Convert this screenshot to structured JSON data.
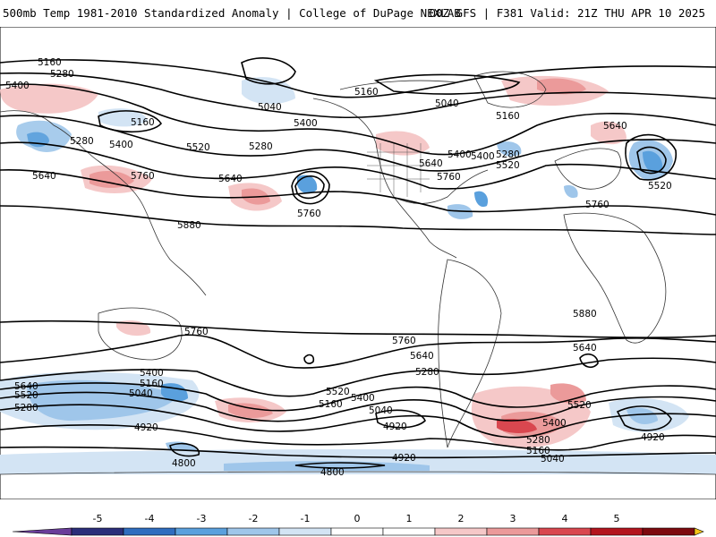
{
  "header": {
    "title": "500mb Temp 1981-2010 Standardized Anomaly | College of DuPage NEXLAB",
    "run_info": "00Z GFS | F381 Valid: 21Z THU APR 10 2025"
  },
  "contour_labels": [
    "5160",
    "5280",
    "5400",
    "5160",
    "5040",
    "5160",
    "5040",
    "5160",
    "5400",
    "5280",
    "5400",
    "5280",
    "5640",
    "5760",
    "5520",
    "5640",
    "5400",
    "5640",
    "5520",
    "5280",
    "5400",
    "5760",
    "5640",
    "5520",
    "5880",
    "5760",
    "5760",
    "5880",
    "5760",
    "5760",
    "5640",
    "5640",
    "5280",
    "5400",
    "5160",
    "5040",
    "5640",
    "5520",
    "5280",
    "5520",
    "5400",
    "5160",
    "5040",
    "4920",
    "4920",
    "4800",
    "4920",
    "4800",
    "5400",
    "5520",
    "5280",
    "5160",
    "5040",
    "4920"
  ],
  "colorbar": {
    "tick_labels": [
      "-5",
      "-4",
      "-3",
      "-2",
      "-1",
      "0",
      "1",
      "2",
      "3",
      "4",
      "5"
    ],
    "colors": [
      "#2b2e7a",
      "#2f6dbf",
      "#5aa0dd",
      "#9fc6ea",
      "#d3e4f4",
      "#ffffff",
      "#ffffff",
      "#f5c8c8",
      "#eb9a9a",
      "#d9474f",
      "#b3151e",
      "#7d0a0f"
    ],
    "low_arrow_color": "#6a3d9a",
    "high_arrow_color": "#f5c518"
  },
  "colors": {
    "contour": "#000000",
    "coast": "#333333",
    "cold": "#5aa0dd",
    "warm": "#d9474f"
  }
}
